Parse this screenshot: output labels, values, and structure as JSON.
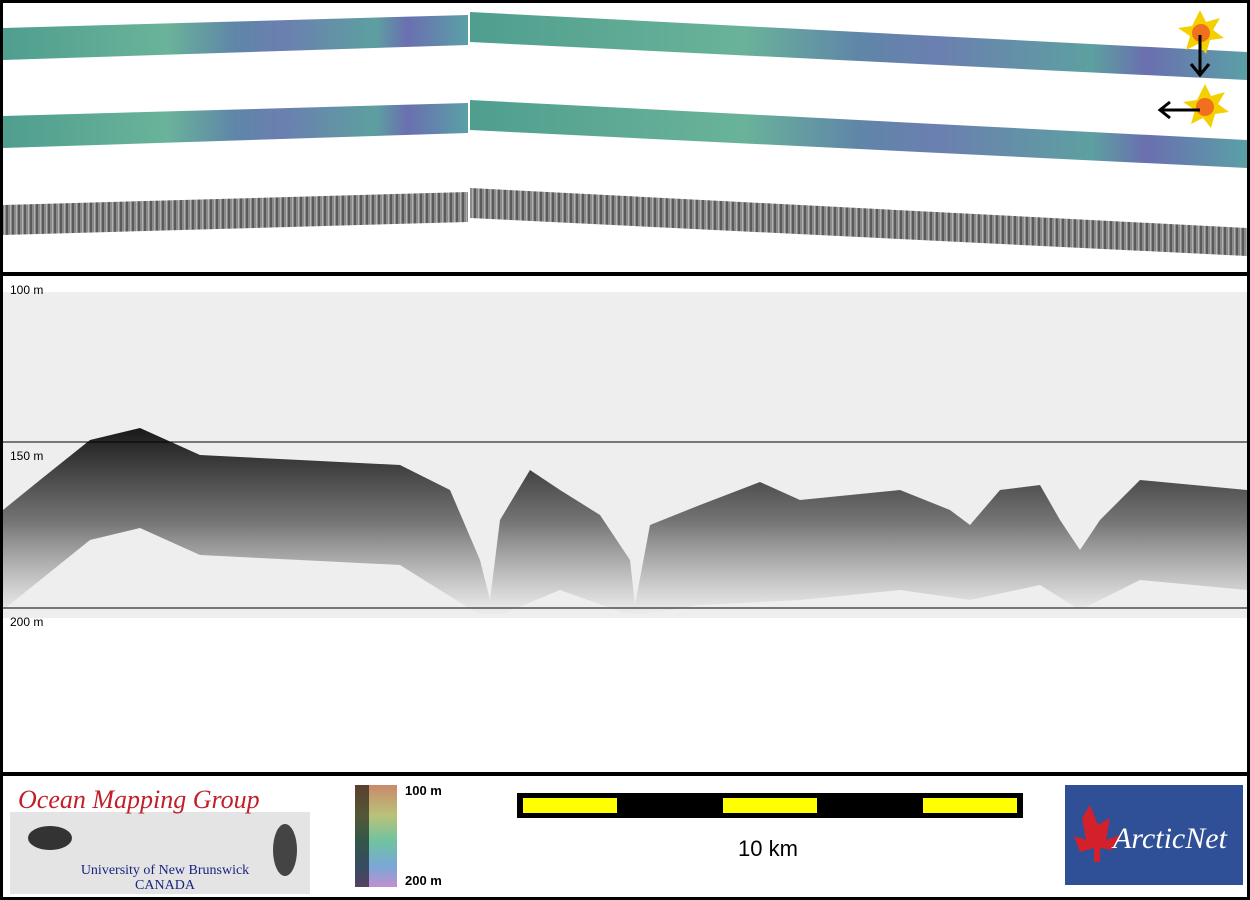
{
  "profile": {
    "depth_labels": [
      "100 m",
      "150 m",
      "200 m"
    ]
  },
  "footer": {
    "logo_title": "Ocean Mapping Group",
    "logo_university": "University of New Brunswick",
    "logo_country": "CANADA",
    "colorbar_labels": [
      "100 m",
      "200 m"
    ],
    "scale_label": "10 km",
    "partner_logo": "ArcticNet"
  }
}
